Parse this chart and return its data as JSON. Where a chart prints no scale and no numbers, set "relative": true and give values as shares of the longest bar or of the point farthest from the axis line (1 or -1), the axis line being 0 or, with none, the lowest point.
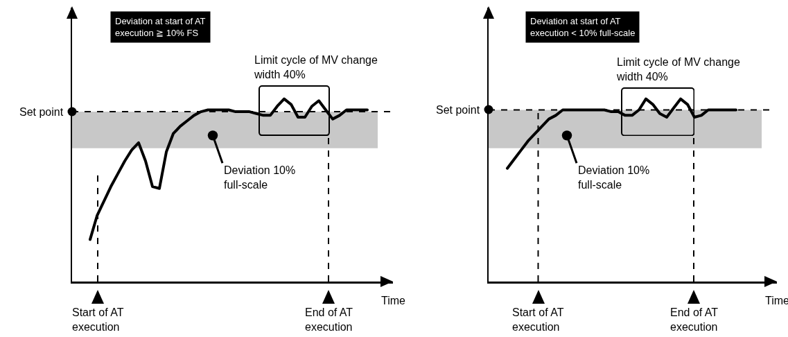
{
  "chart_data": [
    {
      "type": "line",
      "title": "Deviation at start of AT\nexecution ≧ 10% FS",
      "xlabel": "Time",
      "relative": true,
      "marker": "none",
      "categories": [
        null,
        null,
        null,
        null,
        null,
        null,
        null,
        null,
        null,
        null,
        null,
        null,
        null,
        null,
        null,
        null,
        null,
        null,
        null,
        null,
        null,
        null,
        null,
        null,
        null,
        null,
        null,
        null,
        null,
        null,
        null,
        null,
        null,
        null,
        null,
        null,
        null,
        null,
        null,
        null,
        null
      ],
      "series": [
        {
          "color": "#000000",
          "values": [
            0.23,
            0.36,
            0.44,
            0.52,
            0.59,
            0.66,
            0.72,
            0.76,
            0.66,
            0.52,
            0.51,
            0.71,
            0.81,
            0.85,
            0.88,
            0.91,
            0.93,
            0.94,
            0.94,
            0.94,
            0.94,
            0.93,
            0.93,
            0.93,
            0.92,
            0.91,
            0.91,
            0.96,
            1,
            0.97,
            0.9,
            0.9,
            0.96,
            0.99,
            0.94,
            0.89,
            0.91,
            0.94,
            0.94,
            0.94,
            0.94
          ]
        }
      ],
      "bands": [
        {
          "axis": "y",
          "from": 0.73,
          "to": 0.93,
          "color": "#c8c8c8"
        }
      ],
      "ref_lines": [
        {
          "axis": "y",
          "value": 0.93,
          "label": "Set point",
          "line_style": "dashed",
          "color": "#000000"
        }
      ],
      "annotations": [
        "Limit cycle of MV change\nwidth 40%",
        "Deviation 10%\nfull-scale",
        "Start of AT\nexecution",
        "End of AT\nexecution"
      ]
    },
    {
      "type": "line",
      "title": "Deviation at start of AT\nexecution < 10% full-scale",
      "xlabel": "Time",
      "relative": true,
      "marker": "none",
      "categories": [
        null,
        null,
        null,
        null,
        null,
        null,
        null,
        null,
        null,
        null,
        null,
        null,
        null,
        null,
        null,
        null,
        null,
        null,
        null,
        null,
        null,
        null,
        null,
        null,
        null,
        null,
        null,
        null,
        null,
        null,
        null,
        null,
        null,
        null
      ],
      "series": [
        {
          "color": "#000000",
          "values": [
            0.62,
            0.67,
            0.72,
            0.77,
            0.81,
            0.85,
            0.89,
            0.91,
            0.94,
            0.94,
            0.94,
            0.94,
            0.94,
            0.94,
            0.94,
            0.93,
            0.93,
            0.91,
            0.91,
            0.94,
            1,
            0.97,
            0.92,
            0.9,
            0.95,
            1,
            0.97,
            0.9,
            0.91,
            0.94,
            0.94,
            0.94,
            0.94,
            0.94
          ]
        }
      ],
      "bands": [
        {
          "axis": "y",
          "from": 0.73,
          "to": 0.94,
          "color": "#c8c8c8"
        }
      ],
      "ref_lines": [
        {
          "axis": "y",
          "value": 0.94,
          "label": "Set point",
          "line_style": "dashed",
          "color": "#000000"
        }
      ],
      "annotations": [
        "Limit cycle of MV change\nwidth 40%",
        "Deviation 10%\nfull-scale",
        "Start of AT\nexecution",
        "End of AT\nexecution"
      ]
    }
  ]
}
